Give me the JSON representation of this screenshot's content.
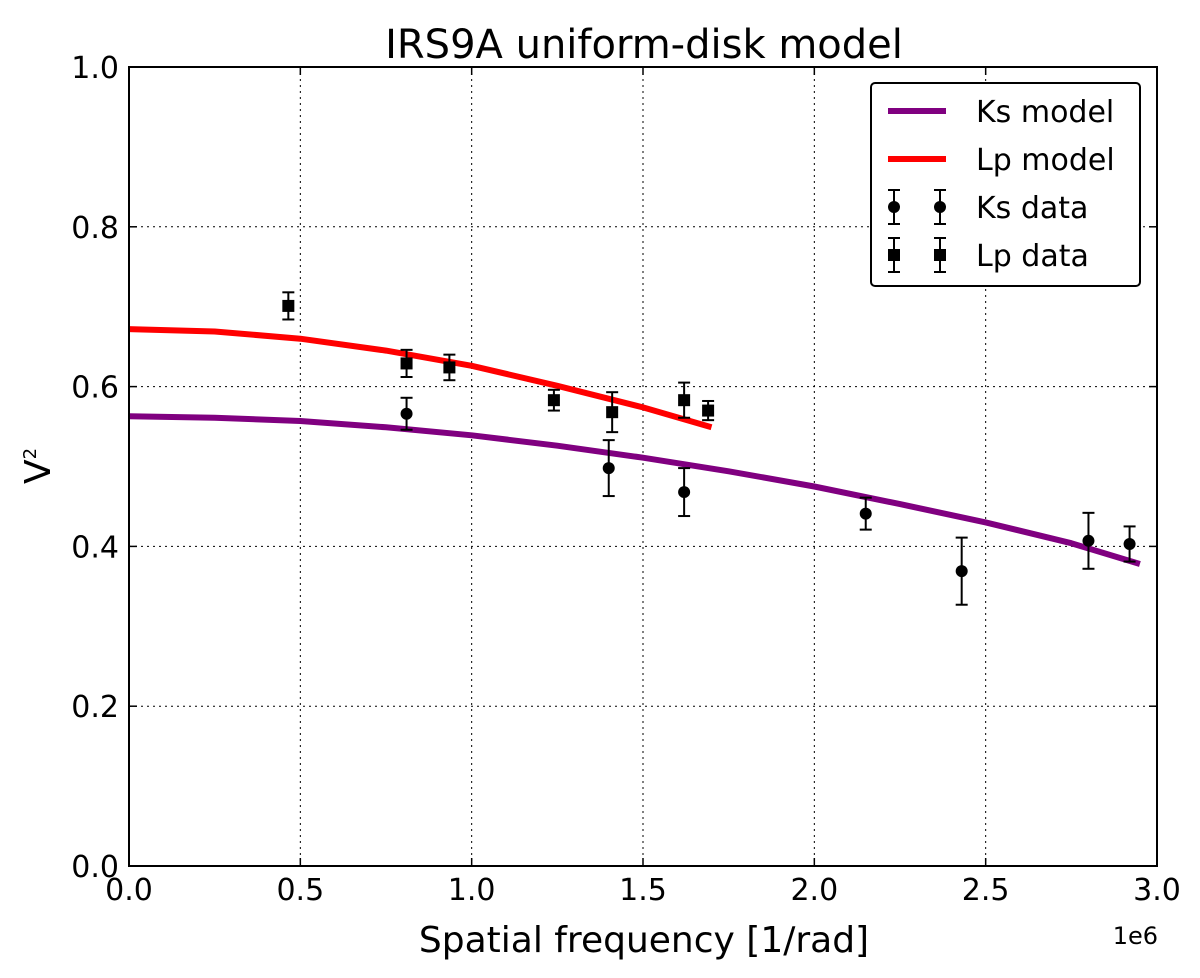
{
  "chart_data": {
    "type": "scatter",
    "title": "IRS9A uniform-disk model",
    "xlabel": "Spatial frequency [1/rad]",
    "ylabel": "V",
    "ylabel_superscript": "2",
    "x_offset_label": "1e6",
    "xlim": [
      0.0,
      3.0
    ],
    "ylim": [
      0.0,
      1.0
    ],
    "xticks": [
      0.0,
      0.5,
      1.0,
      1.5,
      2.0,
      2.5,
      3.0
    ],
    "xtick_labels": [
      "0.0",
      "0.5",
      "1.0",
      "1.5",
      "2.0",
      "2.5",
      "3.0"
    ],
    "yticks": [
      0.0,
      0.2,
      0.4,
      0.6,
      0.8,
      1.0
    ],
    "ytick_labels": [
      "0.0",
      "0.2",
      "0.4",
      "0.6",
      "0.8",
      "1.0"
    ],
    "grid": true,
    "legend_position": "top-right",
    "series": [
      {
        "name": "Ks model",
        "kind": "line",
        "color": "#800080",
        "x": [
          0.0,
          0.25,
          0.5,
          0.75,
          1.0,
          1.25,
          1.5,
          1.75,
          2.0,
          2.25,
          2.5,
          2.75,
          2.95
        ],
        "y": [
          0.563,
          0.561,
          0.557,
          0.549,
          0.539,
          0.526,
          0.511,
          0.494,
          0.475,
          0.453,
          0.43,
          0.404,
          0.378
        ]
      },
      {
        "name": "Lp model",
        "kind": "line",
        "color": "#ff0000",
        "x": [
          0.0,
          0.25,
          0.5,
          0.75,
          1.0,
          1.25,
          1.5,
          1.7
        ],
        "y": [
          0.672,
          0.669,
          0.66,
          0.645,
          0.626,
          0.601,
          0.574,
          0.549
        ]
      },
      {
        "name": "Ks data",
        "kind": "errorbar",
        "marker": "circle",
        "color": "#000000",
        "x": [
          0.81,
          1.4,
          1.62,
          2.15,
          2.43,
          2.8,
          2.92
        ],
        "y": [
          0.566,
          0.498,
          0.468,
          0.441,
          0.369,
          0.407,
          0.403
        ],
        "yerr": [
          0.02,
          0.035,
          0.03,
          0.02,
          0.042,
          0.035,
          0.022
        ]
      },
      {
        "name": "Lp data",
        "kind": "errorbar",
        "marker": "square",
        "color": "#000000",
        "x": [
          0.465,
          0.81,
          0.935,
          1.24,
          1.41,
          1.62,
          1.69
        ],
        "y": [
          0.701,
          0.629,
          0.624,
          0.583,
          0.568,
          0.583,
          0.57
        ],
        "yerr": [
          0.017,
          0.017,
          0.016,
          0.013,
          0.025,
          0.022,
          0.012
        ]
      }
    ]
  }
}
